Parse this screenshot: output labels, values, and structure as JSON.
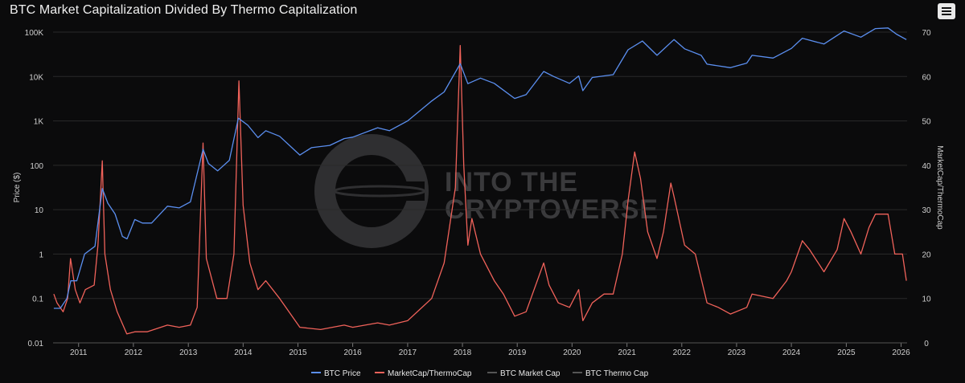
{
  "title": "BTC Market Capitalization Divided By Thermo Capitalization",
  "watermark": {
    "line1": "INTO THE",
    "line2": "CRYPTOVERSE"
  },
  "colors": {
    "btc_price": "#5b8ff0",
    "ratio": "#f0625a",
    "market_cap": "#555555",
    "thermo_cap": "#555555",
    "background": "#0b0b0c",
    "grid": "#2a2a2a"
  },
  "chart_data": {
    "type": "line",
    "title": "BTC Market Capitalization Divided By Thermo Capitalization",
    "xlabel": "",
    "ylabel": "Price ($)",
    "ylabel_right": "MarketCap/ThermoCap",
    "yscale_left": "log",
    "ylim_left": [
      0.01,
      100000
    ],
    "ylim_right": [
      0,
      70
    ],
    "xlim": [
      "2010-07-15",
      "2026-02-10"
    ],
    "grid": true,
    "legend_position": "bottom",
    "y_ticks_left": [
      "0.01",
      "0.1",
      "1",
      "10",
      "100",
      "1K",
      "10K",
      "100K"
    ],
    "y_ticks_right": [
      "0",
      "10",
      "20",
      "30",
      "40",
      "50",
      "60",
      "70"
    ],
    "x_ticks": [
      "2011",
      "2012",
      "2013",
      "2014",
      "2015",
      "2016",
      "2017",
      "2018",
      "2019",
      "2020",
      "2021",
      "2022",
      "2023",
      "2024",
      "2025",
      "2026"
    ],
    "series": [
      {
        "name": "BTC Price",
        "axis": "left",
        "points": [
          [
            "2010-07-20",
            0.06
          ],
          [
            "2010-09-01",
            0.06
          ],
          [
            "2010-10-15",
            0.1
          ],
          [
            "2010-11-10",
            0.25
          ],
          [
            "2010-12-20",
            0.25
          ],
          [
            "2011-02-10",
            1.0
          ],
          [
            "2011-04-20",
            1.5
          ],
          [
            "2011-06-08",
            30
          ],
          [
            "2011-07-15",
            14
          ],
          [
            "2011-09-01",
            8
          ],
          [
            "2011-10-20",
            2.5
          ],
          [
            "2011-11-20",
            2.2
          ],
          [
            "2012-01-10",
            6
          ],
          [
            "2012-03-01",
            5
          ],
          [
            "2012-05-01",
            5
          ],
          [
            "2012-08-15",
            12
          ],
          [
            "2012-11-01",
            11
          ],
          [
            "2013-01-15",
            15
          ],
          [
            "2013-04-09",
            230
          ],
          [
            "2013-05-15",
            110
          ],
          [
            "2013-07-15",
            75
          ],
          [
            "2013-10-01",
            130
          ],
          [
            "2013-11-30",
            1150
          ],
          [
            "2014-02-01",
            800
          ],
          [
            "2014-04-10",
            420
          ],
          [
            "2014-06-01",
            600
          ],
          [
            "2014-09-01",
            450
          ],
          [
            "2015-01-14",
            170
          ],
          [
            "2015-04-01",
            250
          ],
          [
            "2015-08-01",
            280
          ],
          [
            "2015-11-05",
            400
          ],
          [
            "2016-01-01",
            430
          ],
          [
            "2016-06-15",
            700
          ],
          [
            "2016-09-01",
            600
          ],
          [
            "2017-01-01",
            1000
          ],
          [
            "2017-06-10",
            2800
          ],
          [
            "2017-09-01",
            4500
          ],
          [
            "2017-12-17",
            19500
          ],
          [
            "2018-02-06",
            6900
          ],
          [
            "2018-05-01",
            9200
          ],
          [
            "2018-08-01",
            7000
          ],
          [
            "2018-12-15",
            3200
          ],
          [
            "2019-03-01",
            3900
          ],
          [
            "2019-06-26",
            13000
          ],
          [
            "2019-09-01",
            10000
          ],
          [
            "2019-12-15",
            7000
          ],
          [
            "2020-02-14",
            10300
          ],
          [
            "2020-03-13",
            4800
          ],
          [
            "2020-05-15",
            9500
          ],
          [
            "2020-10-01",
            11000
          ],
          [
            "2021-01-08",
            40000
          ],
          [
            "2021-04-14",
            63000
          ],
          [
            "2021-07-20",
            30000
          ],
          [
            "2021-11-10",
            68000
          ],
          [
            "2022-01-20",
            42000
          ],
          [
            "2022-05-10",
            30000
          ],
          [
            "2022-06-18",
            19000
          ],
          [
            "2022-11-21",
            15800
          ],
          [
            "2023-03-10",
            20000
          ],
          [
            "2023-04-14",
            30000
          ],
          [
            "2023-09-01",
            26000
          ],
          [
            "2024-01-01",
            43000
          ],
          [
            "2024-03-14",
            73000
          ],
          [
            "2024-08-05",
            54000
          ],
          [
            "2024-12-17",
            106000
          ],
          [
            "2025-04-08",
            77000
          ],
          [
            "2025-07-14",
            120000
          ],
          [
            "2025-10-06",
            124000
          ],
          [
            "2025-12-01",
            90000
          ],
          [
            "2026-02-05",
            68000
          ]
        ]
      },
      {
        "name": "MarketCap/ThermoCap",
        "axis": "right",
        "points": [
          [
            "2010-07-20",
            11
          ],
          [
            "2010-08-10",
            9
          ],
          [
            "2010-09-20",
            7
          ],
          [
            "2010-10-20",
            10
          ],
          [
            "2010-11-08",
            19
          ],
          [
            "2010-12-10",
            12
          ],
          [
            "2011-01-10",
            9
          ],
          [
            "2011-02-15",
            12
          ],
          [
            "2011-04-15",
            13
          ],
          [
            "2011-05-10",
            22
          ],
          [
            "2011-06-08",
            41
          ],
          [
            "2011-06-25",
            20
          ],
          [
            "2011-08-01",
            12
          ],
          [
            "2011-09-15",
            7
          ],
          [
            "2011-11-18",
            2
          ],
          [
            "2012-01-10",
            2.5
          ],
          [
            "2012-04-01",
            2.5
          ],
          [
            "2012-08-15",
            4
          ],
          [
            "2012-11-01",
            3.5
          ],
          [
            "2013-01-15",
            4
          ],
          [
            "2013-03-01",
            8
          ],
          [
            "2013-04-09",
            45
          ],
          [
            "2013-05-01",
            19
          ],
          [
            "2013-07-10",
            10
          ],
          [
            "2013-09-15",
            10
          ],
          [
            "2013-11-01",
            20
          ],
          [
            "2013-12-04",
            59
          ],
          [
            "2014-01-01",
            31
          ],
          [
            "2014-02-15",
            18
          ],
          [
            "2014-04-10",
            12
          ],
          [
            "2014-06-01",
            14
          ],
          [
            "2014-09-01",
            10
          ],
          [
            "2015-01-14",
            3.5
          ],
          [
            "2015-06-01",
            3
          ],
          [
            "2015-11-05",
            4
          ],
          [
            "2016-01-01",
            3.5
          ],
          [
            "2016-06-15",
            4.5
          ],
          [
            "2016-09-01",
            4
          ],
          [
            "2017-01-01",
            5
          ],
          [
            "2017-06-10",
            10
          ],
          [
            "2017-09-01",
            18
          ],
          [
            "2017-11-15",
            35
          ],
          [
            "2017-12-17",
            67
          ],
          [
            "2018-01-10",
            40
          ],
          [
            "2018-02-06",
            22
          ],
          [
            "2018-03-05",
            28
          ],
          [
            "2018-05-01",
            20
          ],
          [
            "2018-08-01",
            14
          ],
          [
            "2018-10-01",
            11
          ],
          [
            "2018-12-15",
            6
          ],
          [
            "2019-03-01",
            7
          ],
          [
            "2019-06-26",
            18
          ],
          [
            "2019-08-01",
            13
          ],
          [
            "2019-10-01",
            9
          ],
          [
            "2019-12-15",
            8
          ],
          [
            "2020-02-14",
            12
          ],
          [
            "2020-03-13",
            5
          ],
          [
            "2020-05-15",
            9
          ],
          [
            "2020-08-01",
            11
          ],
          [
            "2020-10-01",
            11
          ],
          [
            "2020-12-01",
            20
          ],
          [
            "2021-01-08",
            32
          ],
          [
            "2021-02-21",
            43
          ],
          [
            "2021-04-01",
            37
          ],
          [
            "2021-05-19",
            25
          ],
          [
            "2021-07-20",
            19
          ],
          [
            "2021-09-01",
            25
          ],
          [
            "2021-10-20",
            36
          ],
          [
            "2021-11-10",
            33
          ],
          [
            "2022-01-20",
            22
          ],
          [
            "2022-04-01",
            20
          ],
          [
            "2022-06-18",
            9
          ],
          [
            "2022-09-01",
            8
          ],
          [
            "2022-11-21",
            6.5
          ],
          [
            "2023-03-10",
            8
          ],
          [
            "2023-04-14",
            11
          ],
          [
            "2023-09-01",
            10
          ],
          [
            "2023-12-01",
            14
          ],
          [
            "2024-01-01",
            16
          ],
          [
            "2024-03-14",
            23
          ],
          [
            "2024-05-01",
            21
          ],
          [
            "2024-08-05",
            16
          ],
          [
            "2024-11-01",
            21
          ],
          [
            "2024-12-17",
            28
          ],
          [
            "2025-02-01",
            25
          ],
          [
            "2025-04-08",
            20
          ],
          [
            "2025-06-01",
            26
          ],
          [
            "2025-07-14",
            29
          ],
          [
            "2025-10-06",
            29
          ],
          [
            "2025-11-20",
            20
          ],
          [
            "2026-01-10",
            20
          ],
          [
            "2026-02-05",
            14
          ]
        ]
      },
      {
        "name": "BTC Market Cap",
        "axis": "hidden",
        "points": []
      },
      {
        "name": "BTC Thermo Cap",
        "axis": "hidden",
        "points": []
      }
    ]
  }
}
